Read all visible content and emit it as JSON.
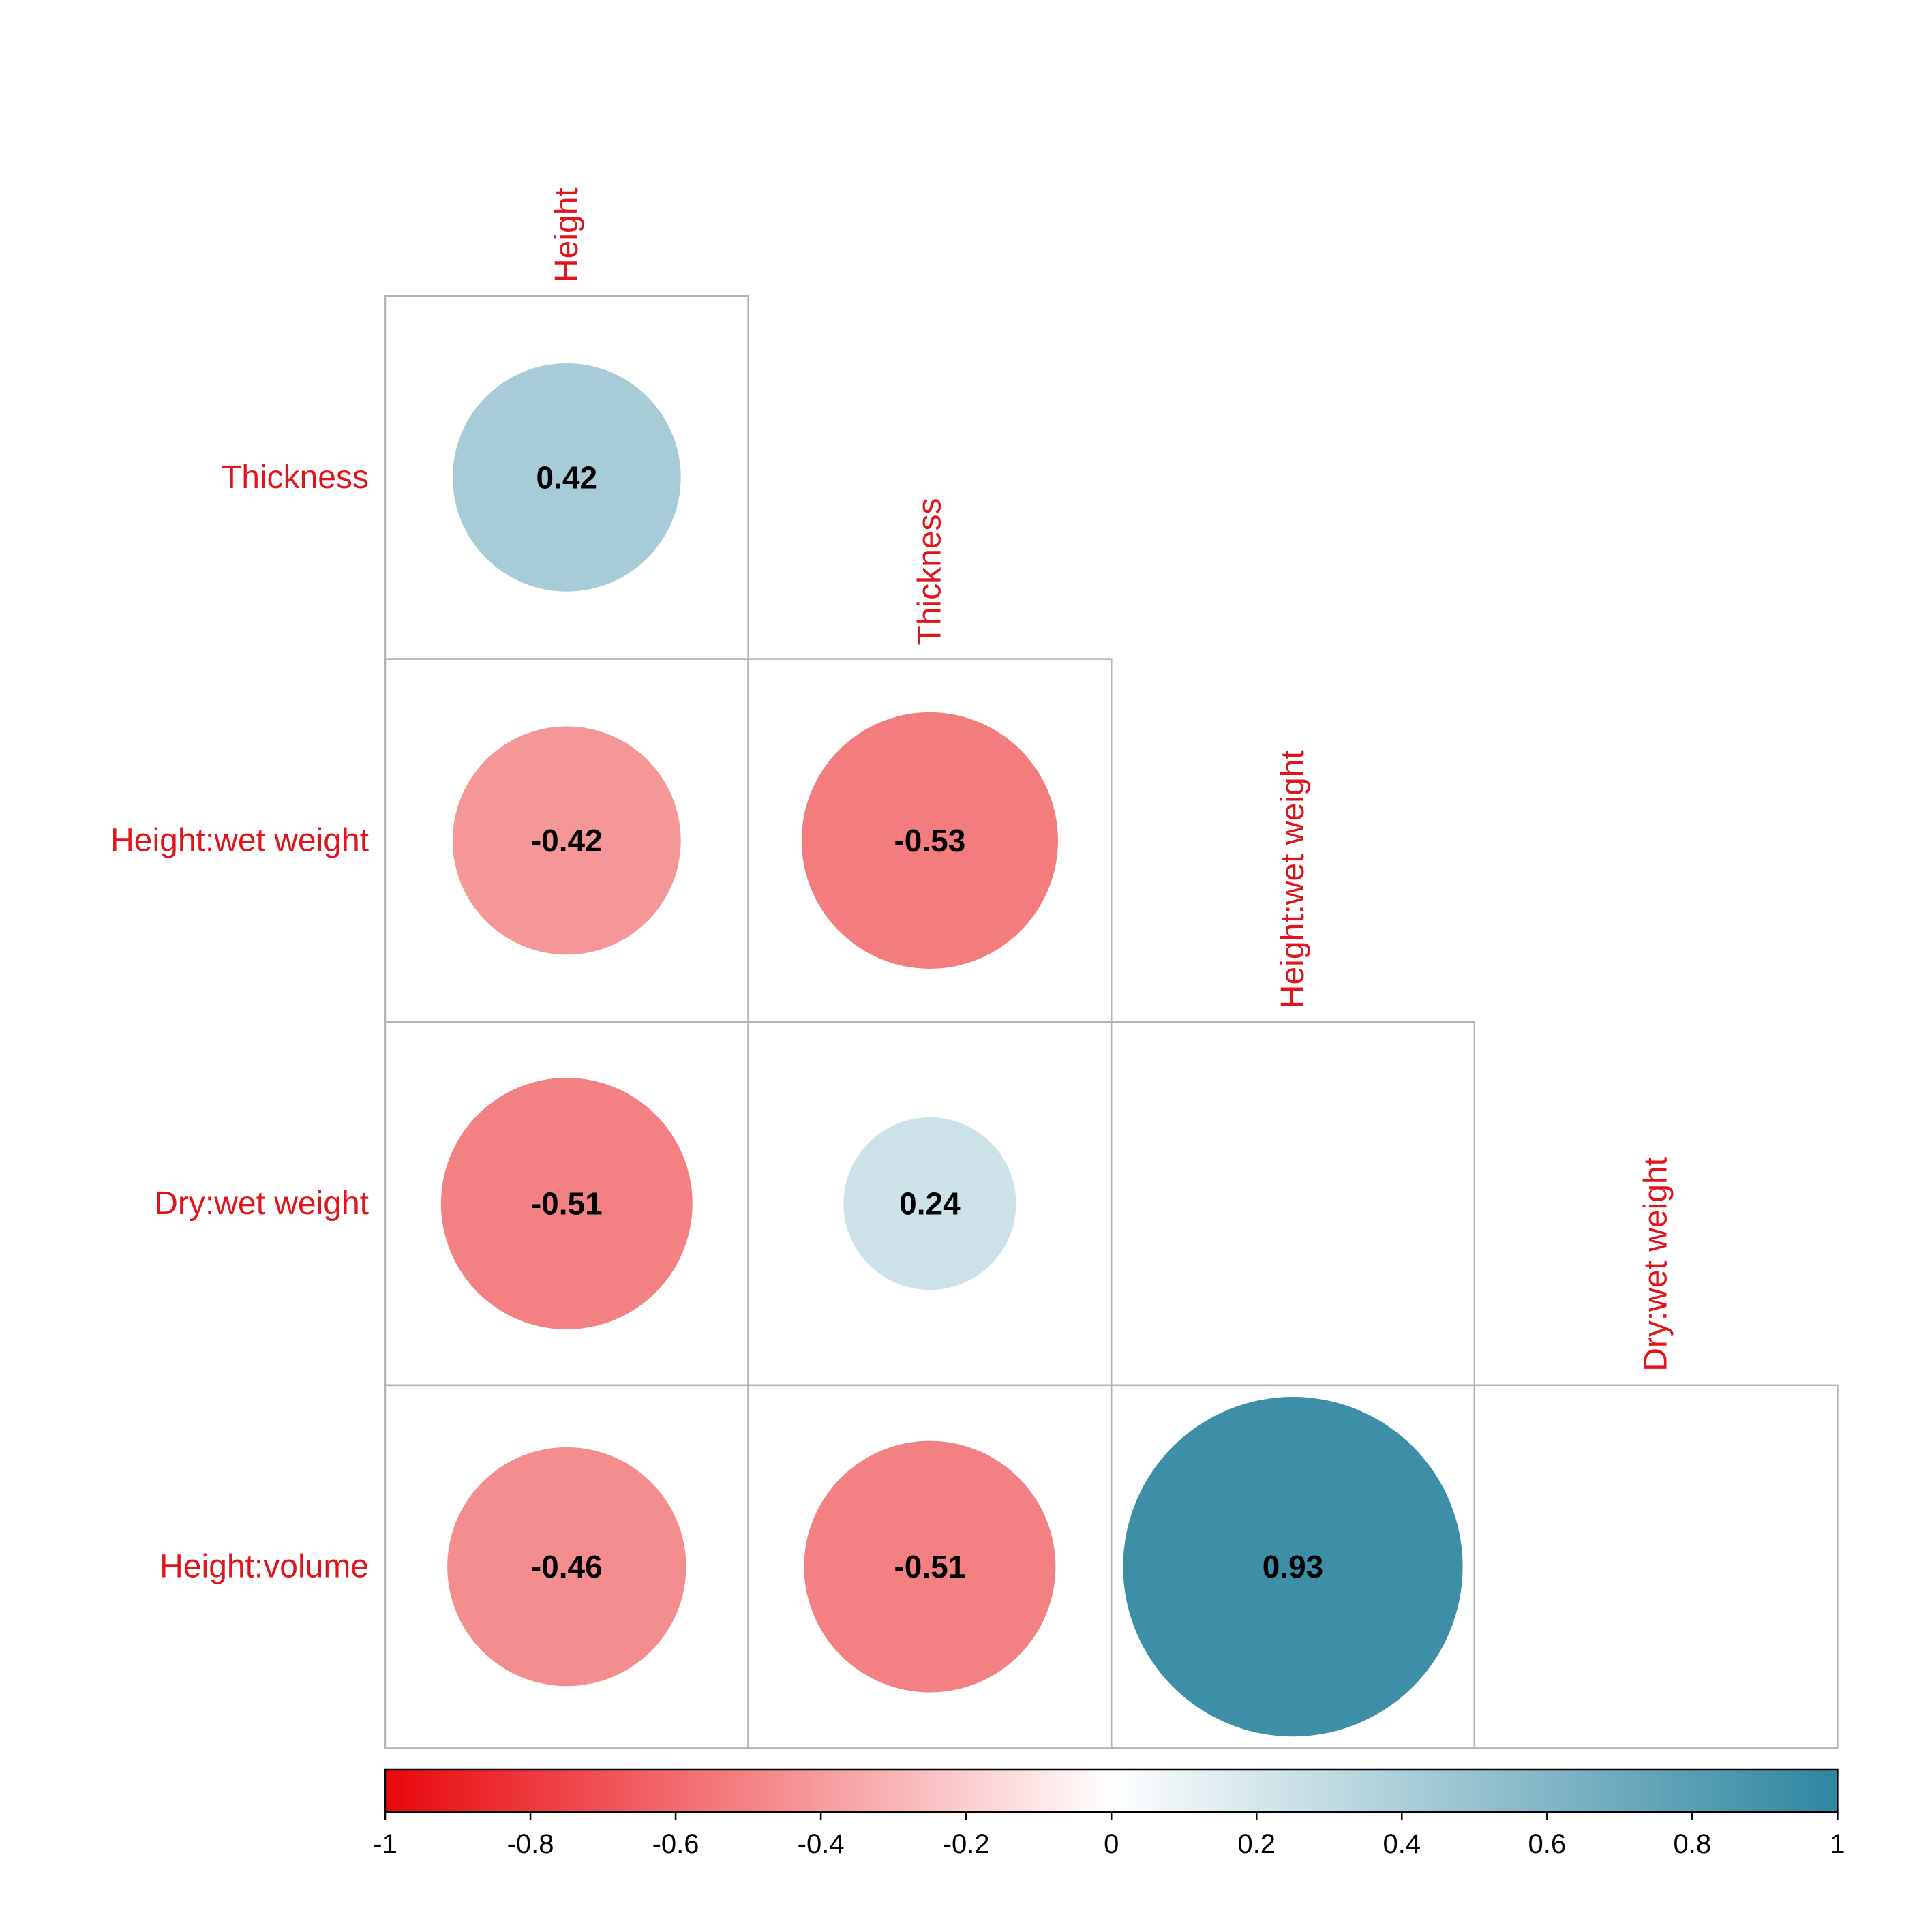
{
  "chart_data": {
    "type": "heatmap",
    "variables": [
      "Height",
      "Thickness",
      "Height:wet weight",
      "Dry:wet weight",
      "Height:volume"
    ],
    "column_labels": [
      "Height",
      "Thickness",
      "Height:wet weight",
      "Dry:wet weight"
    ],
    "row_labels": [
      "Thickness",
      "Height:wet weight",
      "Dry:wet weight",
      "Height:volume"
    ],
    "matrix_lower": [
      [
        0.42,
        null,
        null,
        null
      ],
      [
        -0.42,
        -0.53,
        null,
        null
      ],
      [
        -0.51,
        0.24,
        null,
        null
      ],
      [
        -0.46,
        -0.51,
        0.93,
        null
      ]
    ],
    "value_labels": [
      [
        "0.42",
        "",
        "",
        ""
      ],
      [
        "-0.42",
        "-0.53",
        "",
        ""
      ],
      [
        "-0.51",
        "0.24",
        "",
        ""
      ],
      [
        "-0.46",
        "-0.51",
        "0.93",
        ""
      ]
    ],
    "marker": "circle",
    "colorbar": {
      "range": [
        -1,
        1
      ],
      "ticks": [
        -1,
        -0.8,
        -0.6,
        -0.4,
        -0.2,
        0,
        0.2,
        0.4,
        0.6,
        0.8,
        1
      ],
      "tick_labels": [
        "-1",
        "-0.8",
        "-0.6",
        "-0.4",
        "-0.2",
        "0",
        "0.2",
        "0.4",
        "0.6",
        "0.8",
        "1"
      ],
      "colors": {
        "negative": "#e8070c",
        "zero": "#ffffff",
        "positive": "#2e86a0"
      }
    },
    "label_color": "#e0151c",
    "grid": true,
    "title": "",
    "xlabel": "",
    "ylabel": ""
  }
}
